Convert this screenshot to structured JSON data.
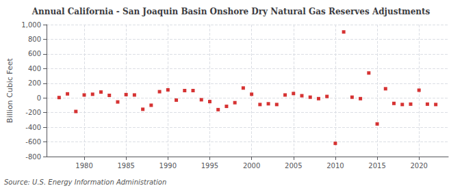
{
  "chart_data": {
    "type": "scatter",
    "title": "Annual California - San Joaquin Basin Onshore Dry Natural Gas Reserves Adjustments",
    "ylabel": "Billion Cubic Feet",
    "annotations": [
      "Source: U.S. Energy Information Administration"
    ],
    "x": [
      1977,
      1978,
      1979,
      1980,
      1981,
      1982,
      1983,
      1984,
      1985,
      1986,
      1987,
      1988,
      1989,
      1990,
      1991,
      1992,
      1993,
      1994,
      1995,
      1996,
      1997,
      1998,
      1999,
      2000,
      2001,
      2002,
      2003,
      2004,
      2005,
      2006,
      2007,
      2008,
      2009,
      2010,
      2011,
      2012,
      2013,
      2014,
      2015,
      2016,
      2017,
      2018,
      2019,
      2020,
      2021,
      2022
    ],
    "values": [
      5,
      55,
      -185,
      40,
      50,
      80,
      35,
      -55,
      45,
      40,
      -155,
      -100,
      85,
      110,
      -30,
      100,
      100,
      -25,
      -50,
      -160,
      -115,
      -65,
      135,
      50,
      -90,
      -80,
      -90,
      40,
      60,
      30,
      10,
      -10,
      20,
      -620,
      900,
      10,
      -10,
      340,
      -355,
      125,
      -75,
      -90,
      -85,
      105,
      -85,
      -90
    ],
    "color": "#cc0000",
    "marker": "square",
    "xlim": [
      1975.5,
      2023.5
    ],
    "xticks": [
      1980,
      1985,
      1990,
      1995,
      2000,
      2005,
      2010,
      2015,
      2020
    ],
    "ylim": [
      -800,
      1000
    ],
    "yticks": [
      -800,
      -600,
      -400,
      -200,
      0,
      200,
      400,
      600,
      800,
      {
        "value": 1000,
        "label": "1,000"
      }
    ],
    "grid": true
  }
}
